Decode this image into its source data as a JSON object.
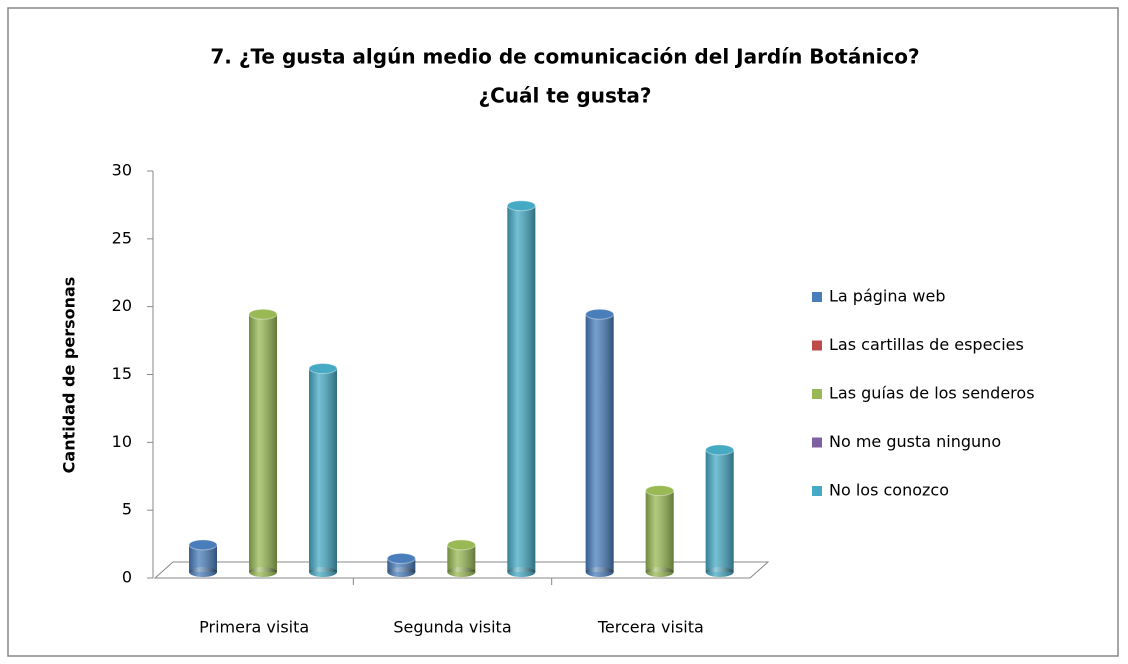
{
  "chart_data": {
    "type": "bar3d",
    "title": [
      "7. ¿Te gusta algún medio de comunicación del Jardín Botánico?",
      "¿Cuál te gusta?"
    ],
    "y_label": "Cantidad de personas",
    "categories": [
      "Primera visita",
      "Segunda visita",
      "Tercera visita"
    ],
    "series": [
      {
        "name": "La página web",
        "color": "#4a7ebb",
        "values": [
          2,
          1,
          19
        ]
      },
      {
        "name": "Las cartillas de especies",
        "color": "#be4b48",
        "values": [
          0,
          0,
          0
        ]
      },
      {
        "name": "Las guías de los senderos",
        "color": "#98b954",
        "values": [
          19,
          2,
          6
        ]
      },
      {
        "name": "No me gusta ninguno",
        "color": "#7d60a0",
        "values": [
          0,
          0,
          0
        ]
      },
      {
        "name": "No los conozco",
        "color": "#46aac5",
        "values": [
          15,
          27,
          9
        ]
      }
    ],
    "ylim": [
      0,
      30
    ],
    "yticks": [
      0,
      5,
      10,
      15,
      20,
      25,
      30
    ],
    "legend": "right"
  }
}
